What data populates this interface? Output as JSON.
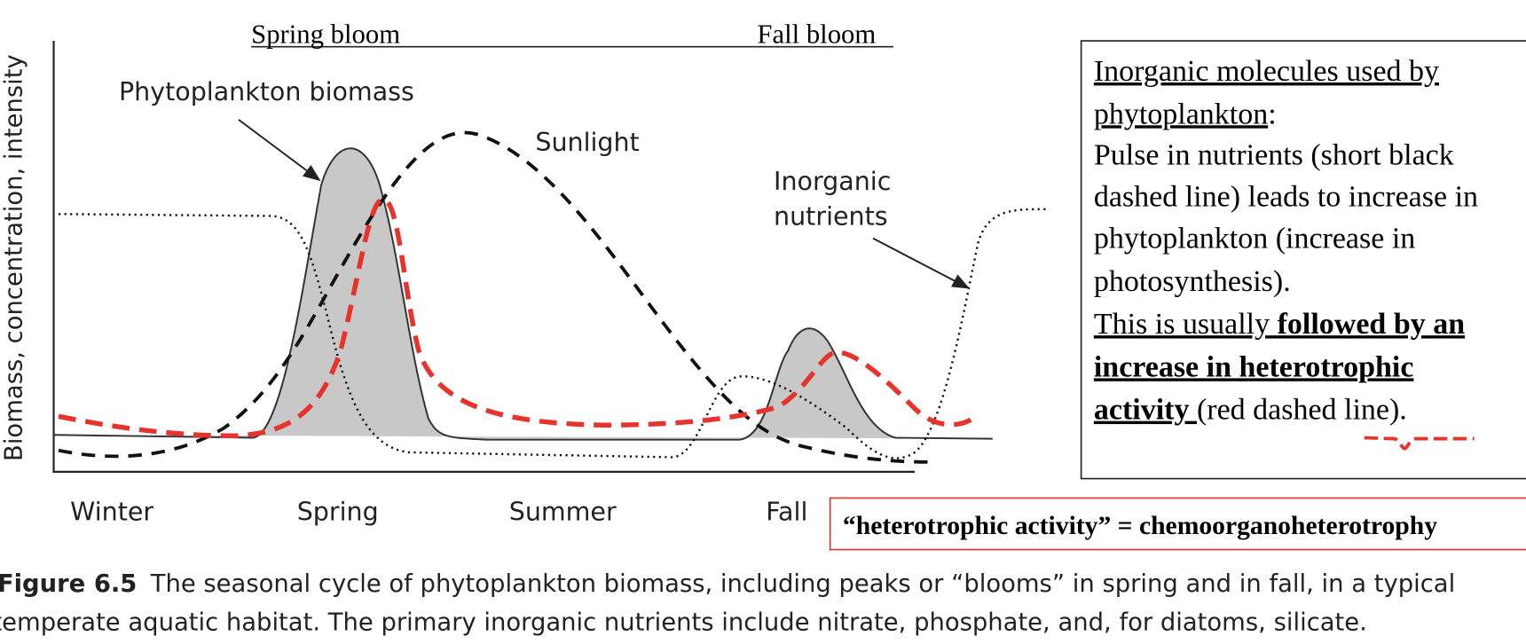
{
  "headers": {
    "spring_bloom": "Spring bloom",
    "fall_bloom": "Fall bloom"
  },
  "y_axis_label": "Biomass, concentration, intensity",
  "labels": {
    "phytoplankton": "Phytoplankton biomass",
    "sunlight": "Sunlight",
    "nutrients": [
      "Inorganic",
      "nutrients"
    ]
  },
  "seasons": [
    "Winter",
    "Spring",
    "Summer",
    "Fall"
  ],
  "note": {
    "heading": [
      "Inorganic molecules used by",
      "phytoplankton",
      ":"
    ],
    "body": [
      "Pulse in nutrients (short black",
      "dashed line) leads to increase in",
      "phytoplankton (increase in",
      "photosynthesis)."
    ],
    "emphasis": [
      "This is usually ",
      "followed by an",
      "increase in heterotrophic",
      "activity ",
      "(red dashed line)."
    ]
  },
  "definition": "“heterotrophic activity” = chemoorganoheterotrophy",
  "caption": {
    "label": "Figure 6.5",
    "lines": [
      "The seasonal cycle of phytoplankton biomass, including peaks or “blooms” in spring and in fall, in a typical",
      "temperate aquatic habitat. The primary inorganic nutrients include nitrate, phosphate, and, for diatoms, silicate."
    ]
  }
}
